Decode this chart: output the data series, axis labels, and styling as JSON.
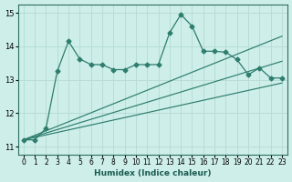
{
  "xlabel": "Humidex (Indice chaleur)",
  "bg_color": "#cdeee9",
  "line_color": "#2e7d6e",
  "grid_color": "#b8ddd6",
  "xlim": [
    -0.5,
    23.5
  ],
  "ylim": [
    10.75,
    15.25
  ],
  "xticks": [
    0,
    1,
    2,
    3,
    4,
    5,
    6,
    7,
    8,
    9,
    10,
    11,
    12,
    13,
    14,
    15,
    16,
    17,
    18,
    19,
    20,
    21,
    22,
    23
  ],
  "yticks": [
    11,
    12,
    13,
    14,
    15
  ],
  "main_x": [
    0,
    1,
    2,
    3,
    4,
    5,
    6,
    7,
    8,
    9,
    10,
    11,
    12,
    13,
    14,
    15,
    16,
    17,
    18,
    19,
    20,
    21,
    22,
    23
  ],
  "main_y": [
    11.2,
    11.2,
    11.55,
    13.25,
    14.15,
    13.62,
    13.45,
    13.45,
    13.3,
    13.3,
    13.45,
    13.45,
    13.45,
    14.4,
    14.95,
    14.6,
    13.85,
    13.85,
    13.82,
    13.6,
    13.15,
    13.35,
    13.05,
    13.05
  ],
  "line1_x": [
    0,
    23
  ],
  "line1_y": [
    11.2,
    13.55
  ],
  "line2_x": [
    0,
    23
  ],
  "line2_y": [
    11.2,
    14.3
  ],
  "line3_x": [
    0,
    23
  ],
  "line3_y": [
    11.2,
    12.9
  ]
}
